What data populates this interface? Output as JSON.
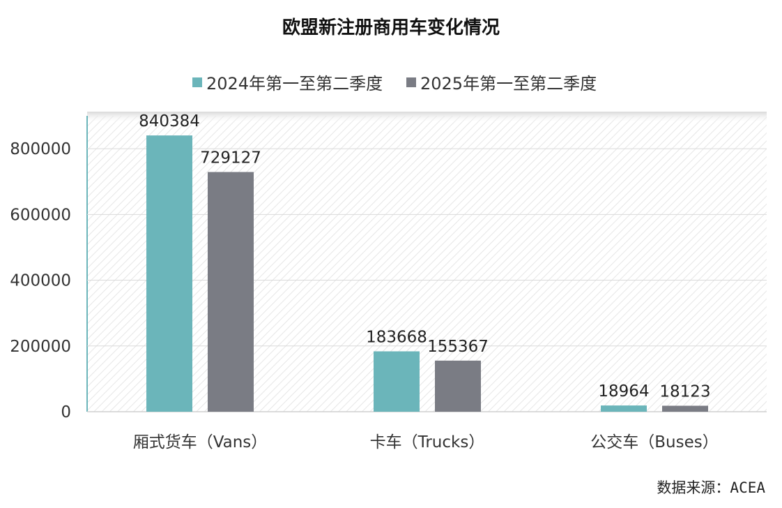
{
  "chart_data": {
    "type": "bar",
    "title": "欧盟新注册商用车变化情况",
    "categories": [
      "厢式货车（Vans）",
      "卡车（Trucks）",
      "公交车（Buses）"
    ],
    "series": [
      {
        "name": "2024年第一至第二季度",
        "values": [
          840384,
          183668,
          18964
        ],
        "color": "#6bb5ba"
      },
      {
        "name": "2025年第一至第二季度",
        "values": [
          729127,
          155367,
          18123
        ],
        "color": "#7a7c84"
      }
    ],
    "yticks": [
      0,
      200000,
      400000,
      600000,
      800000
    ],
    "ylim": [
      0,
      900000
    ],
    "grid": true,
    "legend": "top",
    "xlabel": "",
    "ylabel": ""
  },
  "source": "数据来源：ACEA"
}
